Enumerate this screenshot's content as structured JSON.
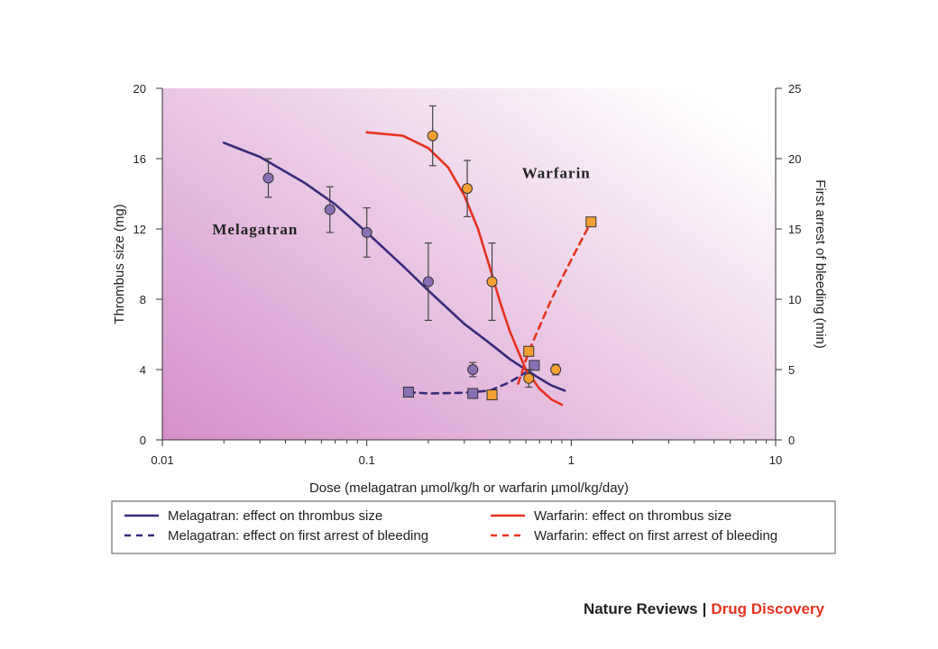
{
  "chart_data": {
    "type": "scatter",
    "x_scale": "log",
    "xlabel": "Dose (melagatran µmol/kg/h or warfarin µmol/kg/day)",
    "ylabel_left": "Thrombus size (mg)",
    "ylabel_right": "First arrest of bleeding (min)",
    "xlim": [
      0.01,
      10
    ],
    "ylim_left": [
      0,
      20
    ],
    "ylim_right": [
      0,
      25
    ],
    "x_ticks": [
      {
        "value": 0.01,
        "label": "0.01"
      },
      {
        "value": 0.1,
        "label": "0.1"
      },
      {
        "value": 1,
        "label": "1"
      },
      {
        "value": 10,
        "label": "10"
      }
    ],
    "y_left_ticks": [
      {
        "value": 0,
        "label": "0"
      },
      {
        "value": 4,
        "label": "4"
      },
      {
        "value": 8,
        "label": "8"
      },
      {
        "value": 12,
        "label": "12"
      },
      {
        "value": 16,
        "label": "16"
      },
      {
        "value": 20,
        "label": "20"
      }
    ],
    "y_right_ticks": [
      {
        "value": 0,
        "label": "0"
      },
      {
        "value": 5,
        "label": "5"
      },
      {
        "value": 10,
        "label": "10"
      },
      {
        "value": 15,
        "label": "15"
      },
      {
        "value": 20,
        "label": "20"
      },
      {
        "value": 25,
        "label": "25"
      }
    ],
    "annotations": [
      {
        "text": "Melagatran",
        "x": 0.011,
        "y": 12
      },
      {
        "text": "Warfarin",
        "x": 0.36,
        "y": 15.2
      }
    ],
    "series": [
      {
        "name": "Melagatran: effect on thrombus size",
        "axis": "left",
        "color": "#3a2a7a",
        "marker": "circle",
        "marker_color": "#8a6fb5",
        "line_style": "solid",
        "points": [
          {
            "x": 0.033,
            "y": 14.9,
            "err": 1.1
          },
          {
            "x": 0.066,
            "y": 13.1,
            "err": 1.3
          },
          {
            "x": 0.1,
            "y": 11.8,
            "err": 1.4
          },
          {
            "x": 0.2,
            "y": 9.0,
            "err": 2.2
          },
          {
            "x": 0.33,
            "y": 4.0,
            "err": 0.4
          }
        ],
        "curve": [
          [
            0.02,
            16.9
          ],
          [
            0.03,
            16.1
          ],
          [
            0.05,
            14.6
          ],
          [
            0.07,
            13.4
          ],
          [
            0.1,
            11.8
          ],
          [
            0.15,
            9.9
          ],
          [
            0.2,
            8.5
          ],
          [
            0.3,
            6.6
          ],
          [
            0.4,
            5.5
          ],
          [
            0.5,
            4.6
          ],
          [
            0.6,
            4.0
          ],
          [
            0.7,
            3.5
          ],
          [
            0.8,
            3.1
          ],
          [
            0.93,
            2.8
          ]
        ]
      },
      {
        "name": "Melagatran: effect on first arrest of bleeding",
        "axis": "right",
        "color": "#3a2a7a",
        "marker": "square",
        "marker_color": "#8a6fb5",
        "line_style": "dashed",
        "points": [
          {
            "x": 0.16,
            "y": 3.4
          },
          {
            "x": 0.33,
            "y": 3.3
          },
          {
            "x": 0.66,
            "y": 5.3
          }
        ],
        "curve": [
          [
            0.16,
            3.4
          ],
          [
            0.2,
            3.3
          ],
          [
            0.3,
            3.35
          ],
          [
            0.4,
            3.5
          ],
          [
            0.5,
            4.1
          ],
          [
            0.6,
            4.8
          ],
          [
            0.66,
            5.3
          ]
        ]
      },
      {
        "name": "Warfarin: effect on thrombus size",
        "axis": "left",
        "color": "#e5331f",
        "marker": "circle",
        "marker_color": "#f5a033",
        "line_style": "solid",
        "points": [
          {
            "x": 0.21,
            "y": 17.3,
            "err": 1.7
          },
          {
            "x": 0.31,
            "y": 14.3,
            "err": 1.6
          },
          {
            "x": 0.41,
            "y": 9.0,
            "err": 2.2
          },
          {
            "x": 0.62,
            "y": 3.5,
            "err": 0.5
          },
          {
            "x": 0.84,
            "y": 4.0,
            "err": 0.3
          }
        ],
        "curve": [
          [
            0.1,
            17.5
          ],
          [
            0.15,
            17.3
          ],
          [
            0.2,
            16.6
          ],
          [
            0.25,
            15.5
          ],
          [
            0.3,
            13.9
          ],
          [
            0.35,
            12.0
          ],
          [
            0.4,
            9.8
          ],
          [
            0.45,
            7.8
          ],
          [
            0.5,
            6.2
          ],
          [
            0.6,
            4.0
          ],
          [
            0.7,
            2.9
          ],
          [
            0.8,
            2.3
          ],
          [
            0.9,
            2.0
          ]
        ]
      },
      {
        "name": "Warfarin: effect on first arrest of bleeding",
        "axis": "right",
        "color": "#e5331f",
        "marker": "square",
        "marker_color": "#f5a033",
        "line_style": "dashed",
        "points": [
          {
            "x": 0.41,
            "y": 3.2
          },
          {
            "x": 0.62,
            "y": 6.3
          },
          {
            "x": 1.25,
            "y": 15.5
          }
        ],
        "curve": [
          [
            0.55,
            4.0
          ],
          [
            0.62,
            6.3
          ],
          [
            0.8,
            10.0
          ],
          [
            1.0,
            12.8
          ],
          [
            1.25,
            15.5
          ]
        ]
      }
    ],
    "legend": {
      "placement": "bottom",
      "entries": [
        {
          "label": "Melagatran: effect on thrombus size",
          "color": "#3a2a7a",
          "line_style": "solid"
        },
        {
          "label": "Warfarin: effect on thrombus size",
          "color": "#e5331f",
          "line_style": "solid"
        },
        {
          "label": "Melagatran: effect on first arrest of bleeding",
          "color": "#3a2a7a",
          "line_style": "dashed"
        },
        {
          "label": "Warfarin: effect on first arrest of bleeding",
          "color": "#e5331f",
          "line_style": "dashed"
        }
      ]
    },
    "background_gradient": [
      "#d48fca",
      "#ffffff"
    ]
  },
  "footer": {
    "publisher": "Nature Reviews",
    "separator": "|",
    "journal": "Drug Discovery"
  }
}
